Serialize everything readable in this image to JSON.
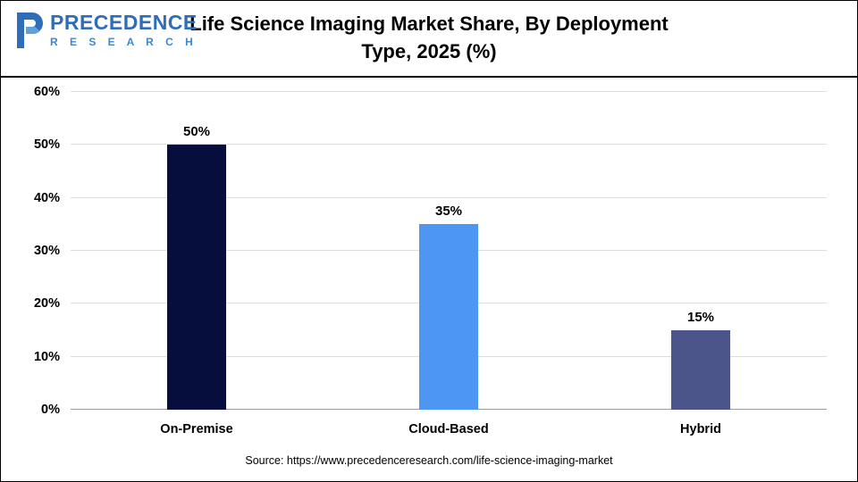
{
  "header": {
    "title": "Life Science Imaging Market Share, By Deployment Type, 2025 (%)",
    "logo": {
      "name": "PRECEDENCE",
      "sub": "R E S E A R C H"
    }
  },
  "chart_data": {
    "type": "bar",
    "title": "Life Science Imaging Market Share, By Deployment Type, 2025 (%)",
    "categories": [
      "On-Premise",
      "Cloud-Based",
      "Hybrid"
    ],
    "values": [
      50,
      35,
      15
    ],
    "value_labels": [
      "50%",
      "35%",
      "15%"
    ],
    "bar_colors": [
      "#050e3d",
      "#4d96f2",
      "#4b5589"
    ],
    "xlabel": "",
    "ylabel": "",
    "ylim": [
      0,
      60
    ],
    "ytick_step": 10,
    "ytick_labels": [
      "0%",
      "10%",
      "20%",
      "30%",
      "40%",
      "50%",
      "60%"
    ],
    "grid": true,
    "legend": false
  },
  "footer": {
    "source": "Source: https://www.precedenceresearch.com/life-science-imaging-market"
  }
}
